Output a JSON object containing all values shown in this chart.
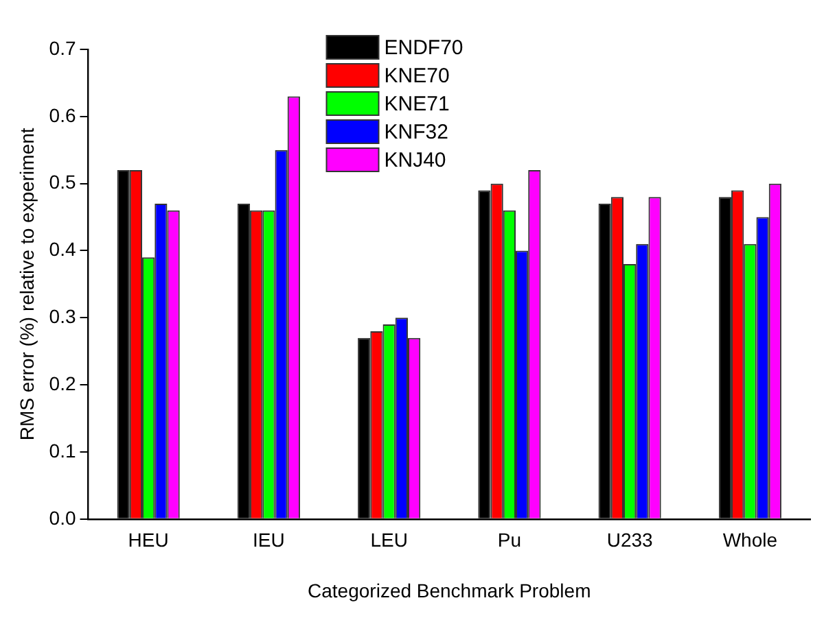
{
  "chart_data": {
    "type": "bar",
    "xlabel": "Categorized Benchmark Problem",
    "ylabel": "RMS error (%) relative to experiment",
    "categories": [
      "HEU",
      "IEU",
      "LEU",
      "Pu",
      "U233",
      "Whole"
    ],
    "series": [
      {
        "name": "ENDF70",
        "color": "#000000",
        "values": [
          0.52,
          0.47,
          0.27,
          0.49,
          0.47,
          0.48
        ]
      },
      {
        "name": "KNE70",
        "color": "#ff0000",
        "values": [
          0.52,
          0.46,
          0.28,
          0.5,
          0.48,
          0.49
        ]
      },
      {
        "name": "KNE71",
        "color": "#00ff00",
        "values": [
          0.39,
          0.46,
          0.29,
          0.46,
          0.38,
          0.41
        ]
      },
      {
        "name": "KNF32",
        "color": "#0000ff",
        "values": [
          0.47,
          0.55,
          0.3,
          0.4,
          0.41,
          0.45
        ]
      },
      {
        "name": "KNJ40",
        "color": "#ff00ff",
        "values": [
          0.46,
          0.63,
          0.27,
          0.52,
          0.48,
          0.5
        ]
      }
    ],
    "ylim": [
      0,
      0.7
    ],
    "yticks": [
      {
        "value": 0,
        "label": "0.0"
      },
      0.1,
      0.2,
      0.3,
      0.4,
      0.5,
      0.6,
      0.7
    ],
    "grid": false,
    "legend": "top"
  }
}
